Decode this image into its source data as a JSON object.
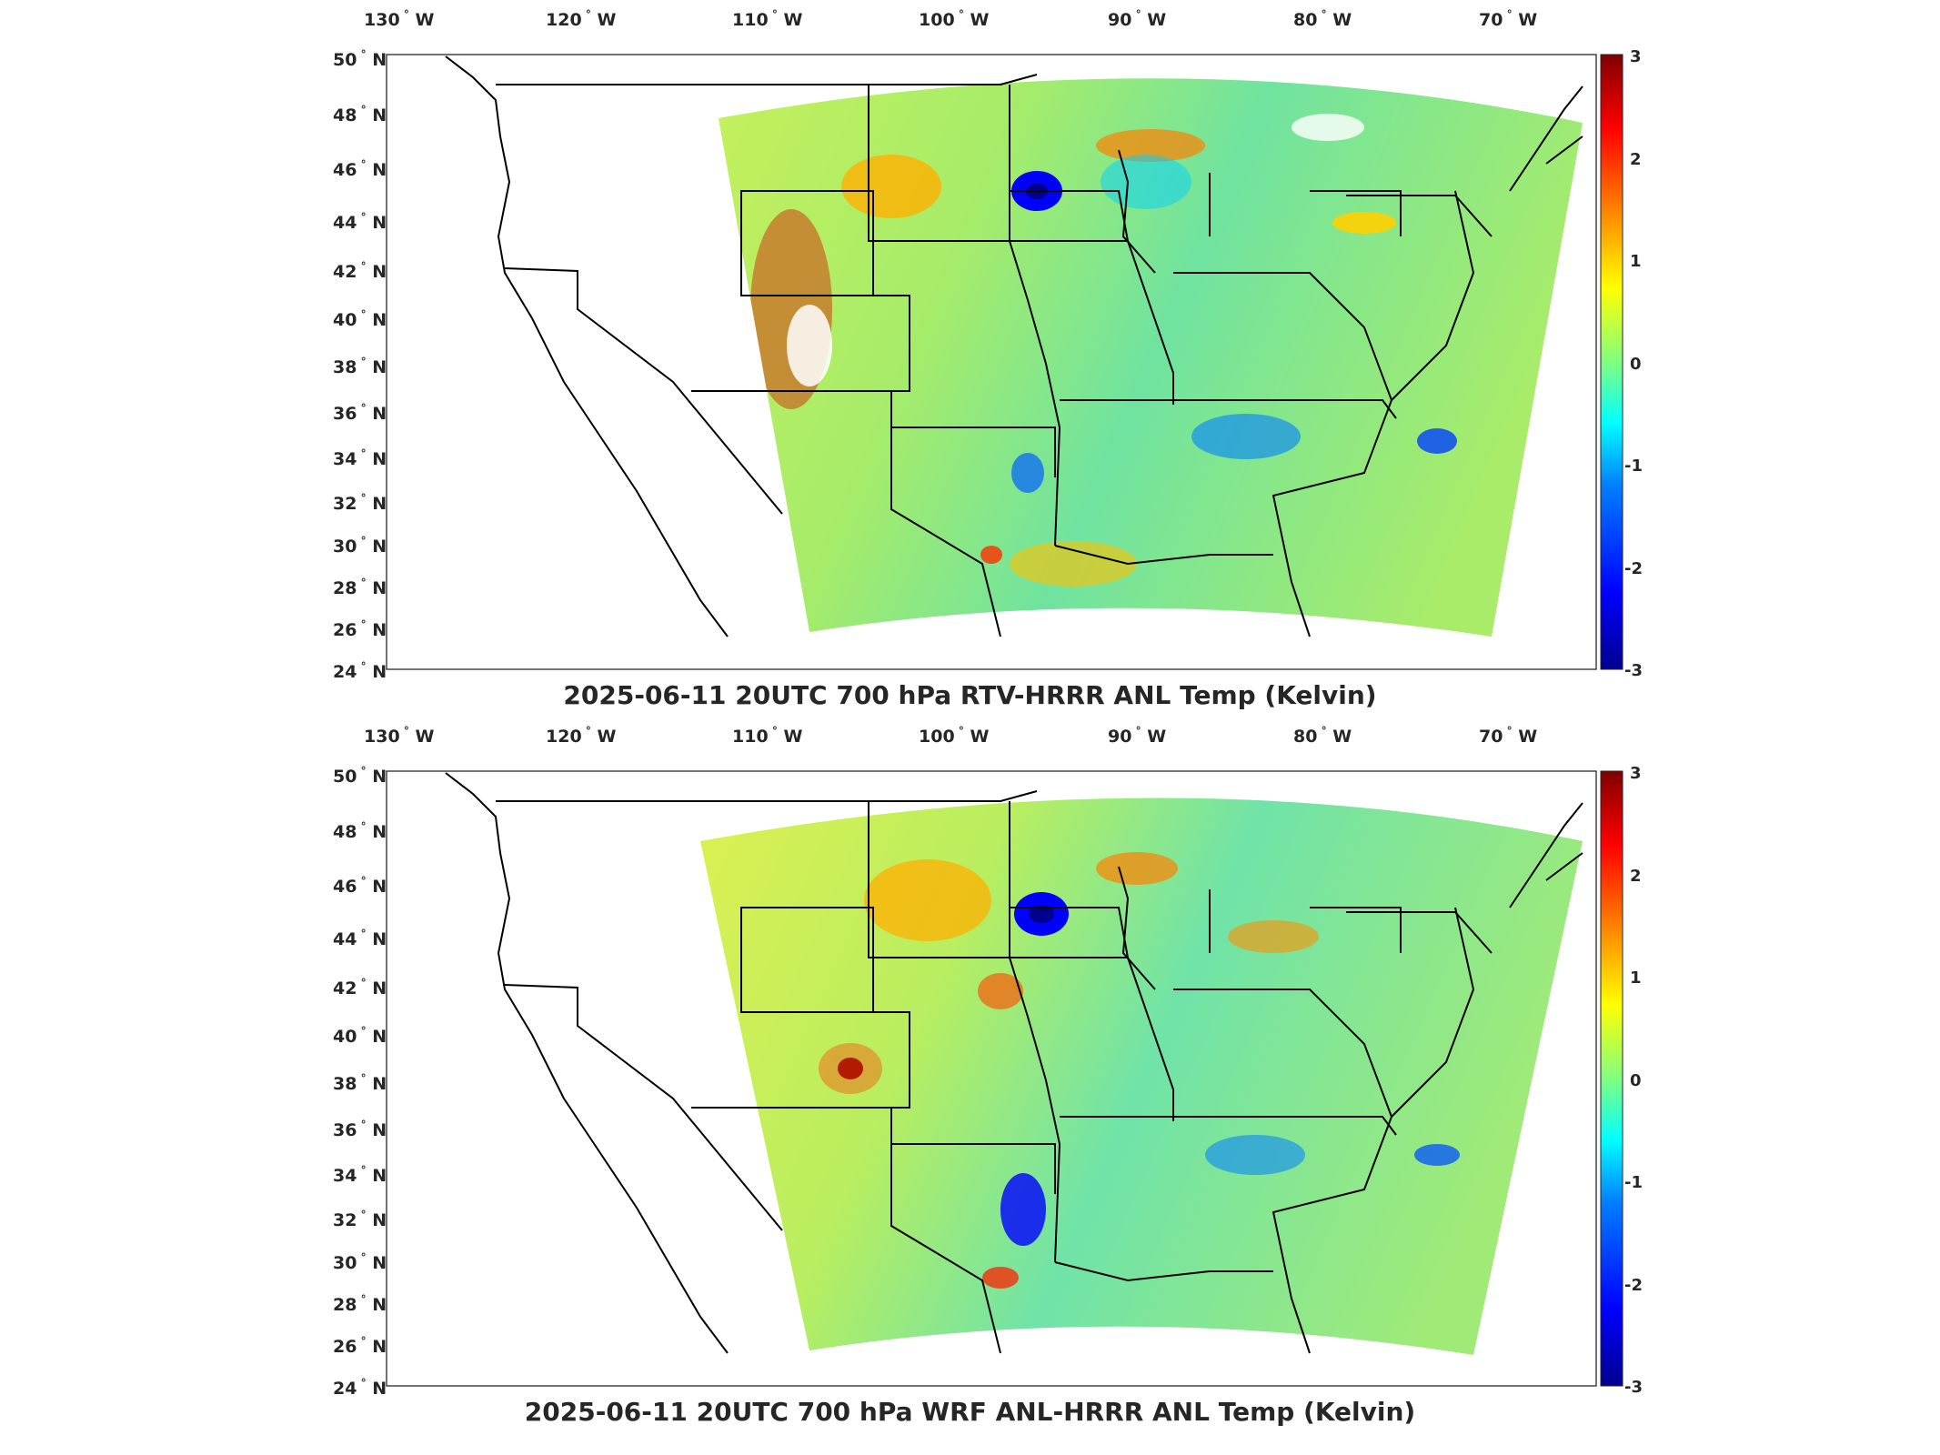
{
  "panels": [
    {
      "id": "top",
      "title": "2025-06-11 20UTC 700 hPa RTV-HRRR ANL Temp (Kelvin)",
      "lon_labels": [
        "130",
        "120",
        "110",
        "100",
        "90",
        "80",
        "70"
      ],
      "lon_suffix": "W",
      "lat_labels": [
        "50",
        "48",
        "46",
        "44",
        "42",
        "40",
        "38",
        "36",
        "34",
        "32",
        "30",
        "28",
        "26",
        "24"
      ],
      "lat_suffix": "N",
      "colorbar_ticks": [
        "3",
        "2",
        "1",
        "0",
        "-1",
        "-2",
        "-3"
      ]
    },
    {
      "id": "bottom",
      "title": "2025-06-11 20UTC 700 hPa WRF ANL-HRRR ANL Temp (Kelvin)",
      "lon_labels": [
        "130",
        "120",
        "110",
        "100",
        "90",
        "80",
        "70"
      ],
      "lon_suffix": "W",
      "lat_labels": [
        "50",
        "48",
        "46",
        "44",
        "42",
        "40",
        "38",
        "36",
        "34",
        "32",
        "30",
        "28",
        "26",
        "24"
      ],
      "lat_suffix": "N",
      "colorbar_ticks": [
        "3",
        "2",
        "1",
        "0",
        "-1",
        "-2",
        "-3"
      ]
    }
  ],
  "colormap": {
    "name": "jet",
    "min": -3,
    "max": 3,
    "stops": [
      "#00008f",
      "#0000ff",
      "#0080ff",
      "#00ffff",
      "#80ff80",
      "#ffff00",
      "#ff8000",
      "#ff0000",
      "#800000"
    ]
  },
  "map": {
    "background": "#ffffff",
    "border_color": "#000000",
    "field_base": "#9ee86a"
  }
}
